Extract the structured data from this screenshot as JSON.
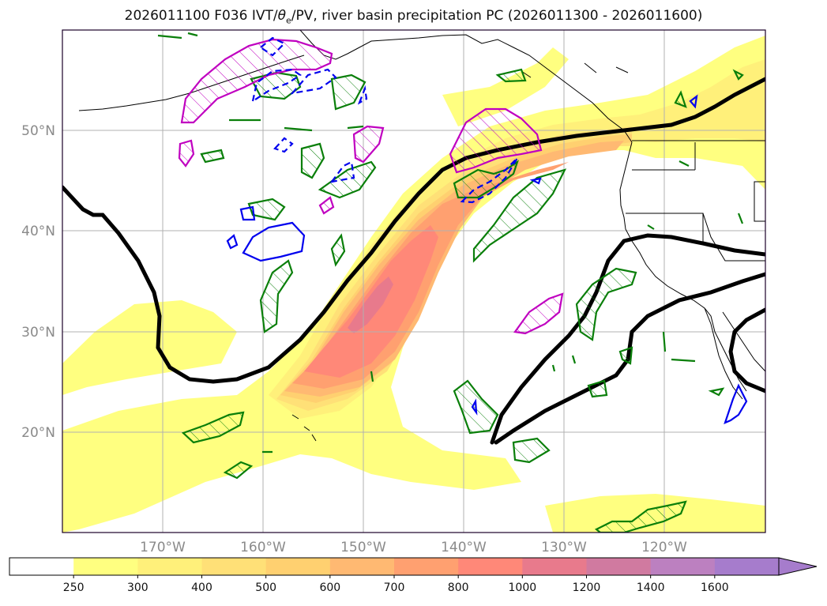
{
  "title": "2026011100 F036 IVT/θe/PV, river basin precipitation PC (2026011300 - 2026011600)",
  "title_parts": {
    "prefix": "2026011100 F036 IVT/",
    "theta": "θ",
    "sub": "e",
    "suffix": "/PV, river basin precipitation PC (2026011300 - 2026011600)"
  },
  "latitude_labels": [
    "50°N",
    "40°N",
    "30°N",
    "20°N"
  ],
  "longitude_labels": [
    "170°W",
    "160°W",
    "150°W",
    "140°W",
    "130°W",
    "120°W"
  ],
  "map_extent": {
    "lon_min": -180,
    "lon_max": -110,
    "lat_min": 10,
    "lat_max": 60
  },
  "chart_data": {
    "type": "heatmap",
    "title": "2026011100 F036 IVT/θe/PV, river basin precipitation PC (2026011300 - 2026011600)",
    "variable": "IVT",
    "gridlines": true,
    "x_ticks": [
      -170,
      -160,
      -150,
      -140,
      -130,
      -120
    ],
    "y_ticks": [
      50,
      40,
      30,
      20
    ],
    "colorbar": {
      "levels": [
        250,
        300,
        400,
        500,
        600,
        700,
        800,
        1000,
        1200,
        1400,
        1600
      ],
      "labels": [
        "250",
        "300",
        "400",
        "500",
        "600",
        "700",
        "800",
        "1000",
        "1200",
        "1400",
        "1600"
      ],
      "colors": [
        "#ffffff",
        "#ffff80",
        "#fff07a",
        "#ffe077",
        "#ffd070",
        "#ffb972",
        "#ffa070",
        "#ff8878",
        "#e87a8c",
        "#d07aa0",
        "#bc80c0",
        "#a67ccc"
      ],
      "extend": "max"
    },
    "ivt_core_max_approx": 1000,
    "overlays": [
      "thick black theta-e / PV contours",
      "green hatched contours",
      "magenta hatched contours",
      "blue solid and dashed contours"
    ]
  },
  "colors": {
    "coast": "#000000",
    "green": "#0a7f0a",
    "magenta": "#c000c0",
    "blue": "#0000ee",
    "grid": "#b0b0b0",
    "frame": "#1a0028"
  }
}
